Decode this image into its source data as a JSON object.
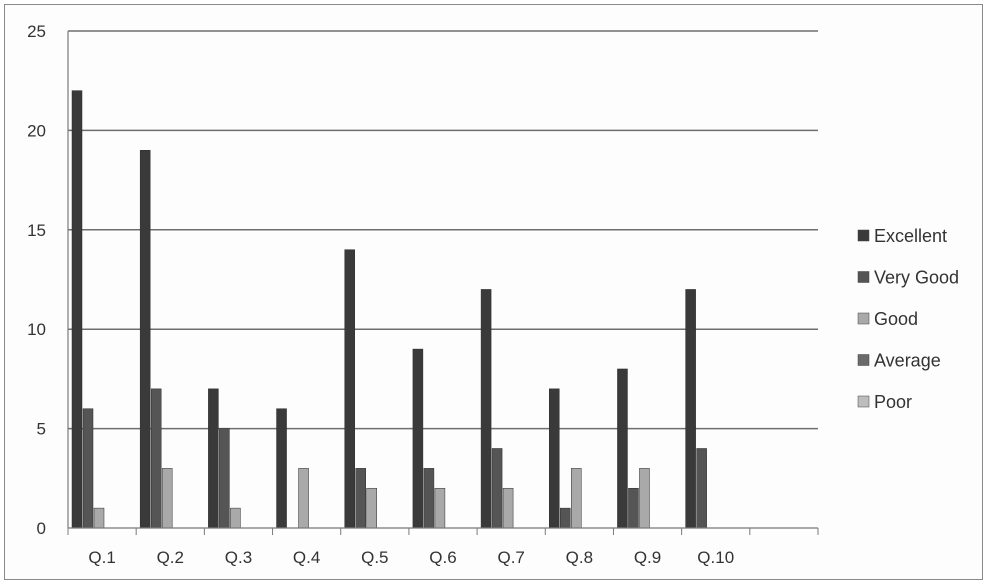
{
  "chart_data": {
    "type": "bar",
    "title": "",
    "xlabel": "",
    "ylabel": "",
    "ylim": [
      0,
      25
    ],
    "yticks": [
      0,
      5,
      10,
      15,
      20,
      25
    ],
    "grid": true,
    "legend_position": "right",
    "categories": [
      "Q.1",
      "Q.2",
      "Q.3",
      "Q.4",
      "Q.5",
      "Q.6",
      "Q.7",
      "Q.8",
      "Q.9",
      "Q.10"
    ],
    "series": [
      {
        "name": "Excellent",
        "color": "#3a3a3a",
        "values": [
          22,
          19,
          7,
          6,
          14,
          9,
          12,
          7,
          8,
          12
        ]
      },
      {
        "name": "Very Good",
        "color": "#555555",
        "values": [
          6,
          7,
          5,
          0,
          3,
          3,
          4,
          1,
          2,
          4
        ]
      },
      {
        "name": "Good",
        "color": "#a9a9a9",
        "values": [
          1,
          3,
          1,
          3,
          2,
          2,
          2,
          3,
          3,
          0
        ]
      },
      {
        "name": "Average",
        "color": "#6a6a6a",
        "values": [
          0,
          0,
          0,
          0,
          0,
          0,
          0,
          0,
          0,
          0
        ]
      },
      {
        "name": "Poor",
        "color": "#bdbdbd",
        "values": [
          0,
          0,
          0,
          0,
          0,
          0,
          0,
          0,
          0,
          0
        ]
      }
    ]
  }
}
